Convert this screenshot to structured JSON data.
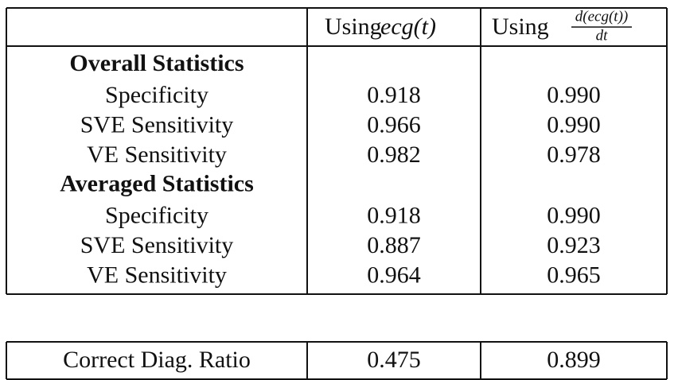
{
  "table": {
    "header": [
      {
        "prefix": "Using",
        "math": "ecg(t)"
      },
      {
        "prefix": "Using",
        "numerator": "d(ecg(t))",
        "denominator": "dt"
      }
    ],
    "sections": [
      {
        "title": "Overall Statistics",
        "rows": [
          [
            "Specificity",
            "0.918",
            "0.990"
          ],
          [
            "SVE Sensitivity",
            "0.966",
            "0.990"
          ],
          [
            "VE Sensitivity",
            "0.982",
            "0.978"
          ]
        ]
      },
      {
        "title": "Averaged Statistics",
        "rows": [
          [
            "Specificity",
            "0.918",
            "0.990"
          ],
          [
            "SVE Sensitivity",
            "0.887",
            "0.923"
          ],
          [
            "VE Sensitivity",
            "0.964",
            "0.965"
          ]
        ]
      }
    ],
    "footer": [
      "Correct Diag. Ratio",
      "0.475",
      "0.899"
    ]
  }
}
